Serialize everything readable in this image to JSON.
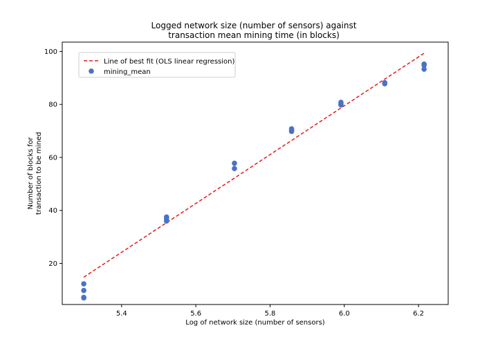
{
  "chart_data": {
    "type": "scatter",
    "title_lines": [
      "Logged network size (number of sensors) against",
      "transaction mean mining time (in blocks)"
    ],
    "xlabel": "Log of network size (number of sensors)",
    "ylabel_lines": [
      "Number of blocks for",
      "transaction to be mined"
    ],
    "xlim": [
      5.24,
      6.28
    ],
    "ylim": [
      4.5,
      103.5
    ],
    "xticks": [
      5.4,
      5.6,
      5.8,
      6.0,
      6.2
    ],
    "xtick_labels": [
      "5.4",
      "5.6",
      "5.8",
      "6.0",
      "6.2"
    ],
    "yticks": [
      20,
      40,
      60,
      80,
      100
    ],
    "ytick_labels": [
      "20",
      "40",
      "60",
      "80",
      "100"
    ],
    "grid": false,
    "legend_position": "upper-left",
    "legend": {
      "line_label": "Line of best fit (OLS linear regression)",
      "scatter_label": "mining_mean"
    },
    "series": [
      {
        "name": "mining_mean",
        "kind": "scatter",
        "color": "#4a72c4",
        "points": [
          {
            "x": 5.298,
            "y": 12.3
          },
          {
            "x": 5.298,
            "y": 9.8
          },
          {
            "x": 5.298,
            "y": 7.2
          },
          {
            "x": 5.298,
            "y": 7.0
          },
          {
            "x": 5.521,
            "y": 37.5
          },
          {
            "x": 5.521,
            "y": 36.8
          },
          {
            "x": 5.521,
            "y": 36.0
          },
          {
            "x": 5.704,
            "y": 57.8
          },
          {
            "x": 5.704,
            "y": 55.8
          },
          {
            "x": 5.858,
            "y": 70.8
          },
          {
            "x": 5.858,
            "y": 70.3
          },
          {
            "x": 5.858,
            "y": 69.8
          },
          {
            "x": 5.991,
            "y": 80.8
          },
          {
            "x": 5.991,
            "y": 80.2
          },
          {
            "x": 5.991,
            "y": 79.8
          },
          {
            "x": 6.109,
            "y": 88.2
          },
          {
            "x": 6.109,
            "y": 87.8
          },
          {
            "x": 6.215,
            "y": 95.2
          },
          {
            "x": 6.215,
            "y": 94.8
          },
          {
            "x": 6.215,
            "y": 93.3
          }
        ]
      },
      {
        "name": "Line of best fit (OLS linear regression)",
        "kind": "line",
        "style": "dashed",
        "color": "#e31a1c",
        "points": [
          {
            "x": 5.298,
            "y": 14.8
          },
          {
            "x": 6.215,
            "y": 99.3
          }
        ]
      }
    ]
  }
}
